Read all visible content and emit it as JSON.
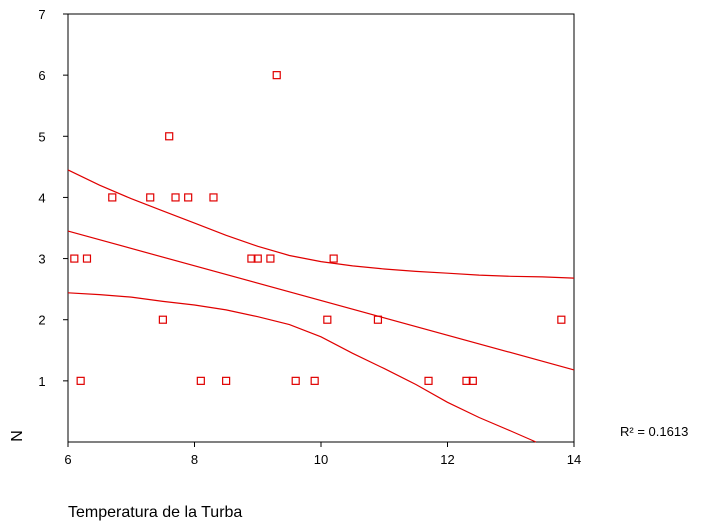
{
  "chart_data": {
    "type": "scatter",
    "xlabel": "Temperatura de la Turba",
    "ylabel": "N",
    "xlim": [
      6,
      14
    ],
    "ylim": [
      0,
      7
    ],
    "x_ticks": [
      6,
      8,
      10,
      12,
      14
    ],
    "y_ticks": [
      1,
      2,
      3,
      4,
      5,
      6,
      7
    ],
    "grid": false,
    "r_squared_label": "R² = 0.1613",
    "marker_color": "#e00000",
    "line_color": "#e00000",
    "points": [
      {
        "x": 6.1,
        "y": 3
      },
      {
        "x": 6.3,
        "y": 3
      },
      {
        "x": 6.2,
        "y": 1
      },
      {
        "x": 6.7,
        "y": 4
      },
      {
        "x": 7.3,
        "y": 4
      },
      {
        "x": 7.5,
        "y": 2
      },
      {
        "x": 7.6,
        "y": 5
      },
      {
        "x": 7.7,
        "y": 4
      },
      {
        "x": 7.9,
        "y": 4
      },
      {
        "x": 8.1,
        "y": 1
      },
      {
        "x": 8.3,
        "y": 4
      },
      {
        "x": 8.5,
        "y": 1
      },
      {
        "x": 8.9,
        "y": 3
      },
      {
        "x": 9.0,
        "y": 3
      },
      {
        "x": 9.2,
        "y": 3
      },
      {
        "x": 9.3,
        "y": 6
      },
      {
        "x": 9.6,
        "y": 1
      },
      {
        "x": 9.9,
        "y": 1
      },
      {
        "x": 10.1,
        "y": 2
      },
      {
        "x": 10.2,
        "y": 3
      },
      {
        "x": 10.9,
        "y": 2
      },
      {
        "x": 11.7,
        "y": 1
      },
      {
        "x": 12.3,
        "y": 1
      },
      {
        "x": 12.4,
        "y": 1
      },
      {
        "x": 13.8,
        "y": 2
      }
    ],
    "fit_line": {
      "x": [
        6,
        14
      ],
      "y": [
        3.45,
        1.18
      ]
    },
    "confidence_upper": {
      "x": [
        6,
        6.5,
        7,
        7.5,
        8,
        8.5,
        9,
        9.5,
        10,
        10.5,
        11,
        11.5,
        12,
        12.5,
        13,
        13.5,
        14
      ],
      "y": [
        4.45,
        4.2,
        3.98,
        3.78,
        3.58,
        3.38,
        3.2,
        3.05,
        2.95,
        2.88,
        2.83,
        2.79,
        2.76,
        2.73,
        2.71,
        2.7,
        2.68
      ]
    },
    "confidence_lower": {
      "x": [
        6,
        6.5,
        7,
        7.5,
        8,
        8.5,
        9,
        9.5,
        10,
        10.5,
        11,
        11.5,
        12,
        12.5,
        13,
        13.4
      ],
      "y": [
        2.44,
        2.41,
        2.37,
        2.3,
        2.24,
        2.16,
        2.05,
        1.92,
        1.72,
        1.45,
        1.2,
        0.94,
        0.65,
        0.4,
        0.18,
        0.0
      ]
    }
  }
}
